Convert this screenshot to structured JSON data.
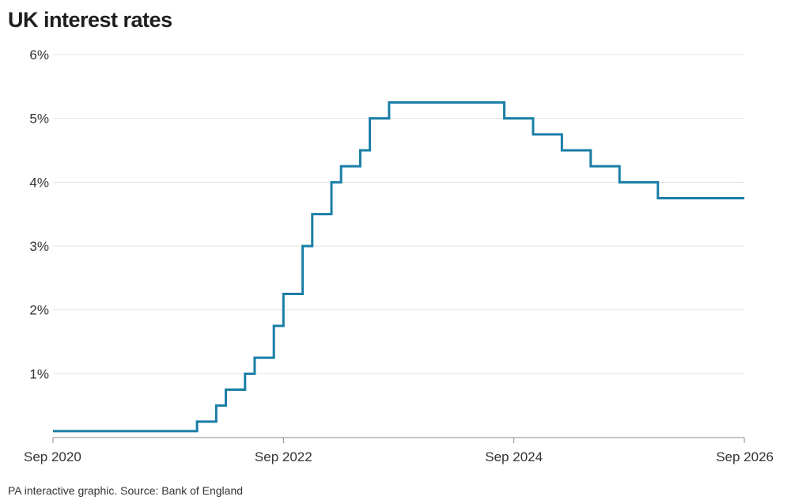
{
  "chart_data": {
    "type": "line",
    "step": true,
    "title": "UK interest rates",
    "source": "PA interactive graphic. Source: Bank of England",
    "xlabel": "",
    "ylabel": "",
    "xlim": [
      "2020-09",
      "2026-09"
    ],
    "ylim": [
      0,
      6
    ],
    "yticks": [
      1,
      2,
      3,
      4,
      5,
      6
    ],
    "ytick_labels": [
      "1%",
      "2%",
      "3%",
      "4%",
      "5%",
      "6%"
    ],
    "xticks": [
      "2020-09",
      "2022-09",
      "2024-09",
      "2026-09"
    ],
    "xtick_labels": [
      "Sep 2020",
      "Sep 2022",
      "Sep 2024",
      "Sep 2026"
    ],
    "grid": "horizontal",
    "line_color": "#1a7ea6",
    "series": [
      {
        "points": [
          {
            "date": "2020-09",
            "value": 0.1
          },
          {
            "date": "2021-12",
            "value": 0.25
          },
          {
            "date": "2022-02",
            "value": 0.5
          },
          {
            "date": "2022-03",
            "value": 0.75
          },
          {
            "date": "2022-05",
            "value": 1.0
          },
          {
            "date": "2022-06",
            "value": 1.25
          },
          {
            "date": "2022-08",
            "value": 1.75
          },
          {
            "date": "2022-09",
            "value": 2.25
          },
          {
            "date": "2022-11",
            "value": 3.0
          },
          {
            "date": "2022-12",
            "value": 3.5
          },
          {
            "date": "2023-02",
            "value": 4.0
          },
          {
            "date": "2023-03",
            "value": 4.25
          },
          {
            "date": "2023-05",
            "value": 4.5
          },
          {
            "date": "2023-06",
            "value": 5.0
          },
          {
            "date": "2023-08",
            "value": 5.25
          },
          {
            "date": "2024-08",
            "value": 5.0
          },
          {
            "date": "2024-11",
            "value": 4.75
          },
          {
            "date": "2025-02",
            "value": 4.5
          },
          {
            "date": "2025-05",
            "value": 4.25
          },
          {
            "date": "2025-08",
            "value": 4.0
          },
          {
            "date": "2025-12",
            "value": 3.75
          },
          {
            "date": "2026-09",
            "value": 3.75
          }
        ]
      }
    ]
  }
}
